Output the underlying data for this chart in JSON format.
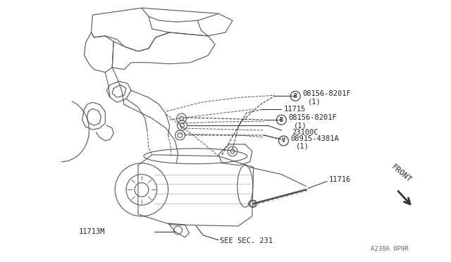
{
  "bg_color": "#ffffff",
  "line_color": "#555555",
  "label_color": "#222222",
  "lw": 0.8,
  "fs": 7.2,
  "labels": {
    "b1_text": "08156-8201F",
    "b1_sub": "（1）",
    "n11715": "11715",
    "b2_text": "08156-8201F",
    "b2_sub": "（1）",
    "n23100c": "23100C",
    "v_text": "08915-4381A",
    "v_sub": "（1）",
    "n11716": "11716",
    "n11713m": "11713M",
    "see_sec": "SEE SEC. 231",
    "front": "FRONT",
    "partno": "A230A 0P9R"
  }
}
